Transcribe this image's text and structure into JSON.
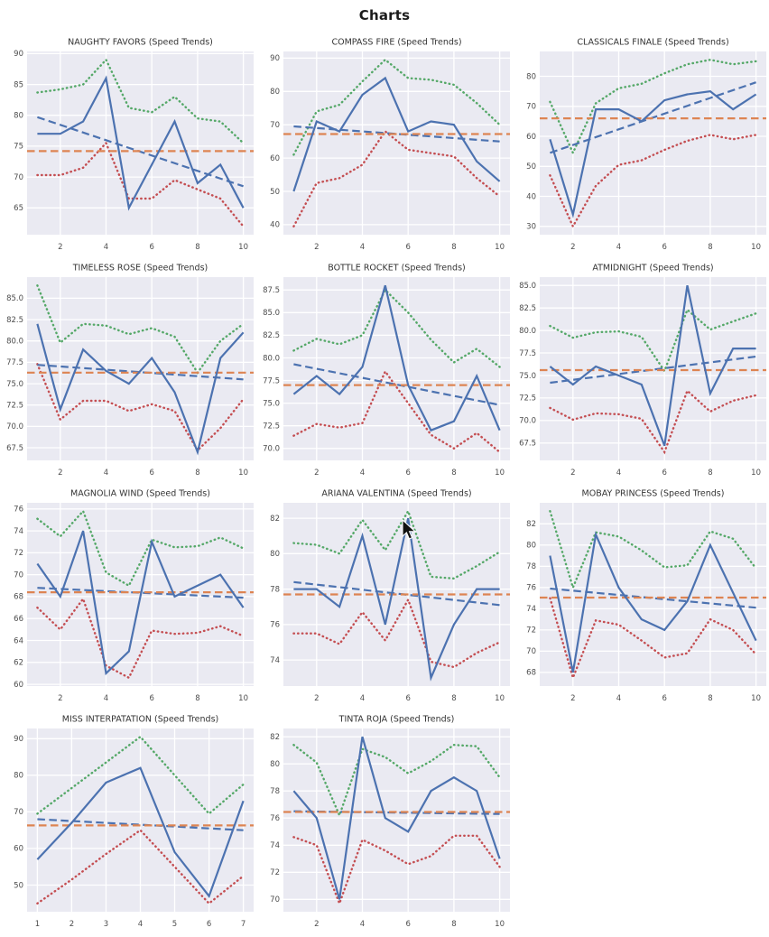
{
  "figure": {
    "title": "Charts"
  },
  "style": {
    "colors": {
      "blue": "#4c72b0",
      "green": "#55a868",
      "red": "#c44e52",
      "orange": "#dd8452",
      "plot_bg": "#eaeaf2",
      "grid": "#ffffff",
      "tick_label": "#4d4d4d",
      "chart_title": "#333333"
    },
    "legend": "none",
    "grid_on": true
  },
  "cursor": {
    "icon": "mouse-pointer"
  },
  "chart_data": [
    {
      "type": "line",
      "title": "NAUGHTY FAVORS (Speed Trends)",
      "x": [
        1,
        2,
        3,
        4,
        5,
        6,
        7,
        8,
        9,
        10
      ],
      "xticks": [
        "2",
        "4",
        "6",
        "8",
        "10"
      ],
      "yticks": [
        "65",
        "70",
        "75",
        "80",
        "85",
        "90"
      ],
      "series": [
        {
          "name": "speed",
          "style": "solid",
          "color": "blue",
          "values": [
            77,
            77,
            79,
            86,
            65,
            72,
            79,
            69,
            72,
            65
          ]
        },
        {
          "name": "upper_band",
          "style": "dotted",
          "color": "green",
          "values": [
            83.7,
            84.2,
            85,
            89,
            81.2,
            80.5,
            83,
            79.5,
            79,
            75.5
          ]
        },
        {
          "name": "lower_band",
          "style": "dotted",
          "color": "red",
          "values": [
            70.3,
            70.3,
            71.5,
            75.5,
            66.5,
            66.5,
            69.5,
            68,
            66.5,
            62
          ]
        },
        {
          "name": "trend",
          "style": "dashed",
          "color": "blue",
          "trend_from": 79.7,
          "trend_to": 68.5
        },
        {
          "name": "mean_line",
          "style": "dashed",
          "color": "orange",
          "constant": 74.2
        }
      ]
    },
    {
      "type": "line",
      "title": "COMPASS FIRE (Speed Trends)",
      "x": [
        1,
        2,
        3,
        4,
        5,
        6,
        7,
        8,
        9,
        10
      ],
      "xticks": [
        "2",
        "4",
        "6",
        "8",
        "10"
      ],
      "yticks": [
        "40",
        "50",
        "60",
        "70",
        "80",
        "90"
      ],
      "series": [
        {
          "name": "speed",
          "style": "solid",
          "color": "blue",
          "values": [
            50,
            71,
            68,
            79,
            84,
            68,
            71,
            70,
            59,
            53
          ]
        },
        {
          "name": "upper_band",
          "style": "dotted",
          "color": "green",
          "values": [
            61,
            74,
            76,
            83,
            89.5,
            84,
            83.5,
            82,
            76.5,
            70
          ]
        },
        {
          "name": "lower_band",
          "style": "dotted",
          "color": "red",
          "values": [
            39.5,
            52.5,
            54,
            58,
            68,
            62.5,
            61.5,
            60.5,
            54,
            48.5
          ]
        },
        {
          "name": "trend",
          "style": "dashed",
          "color": "blue",
          "trend_from": 69.5,
          "trend_to": 65
        },
        {
          "name": "mean_line",
          "style": "dashed",
          "color": "orange",
          "constant": 67.2
        }
      ]
    },
    {
      "type": "line",
      "title": "CLASSICALS FINALE (Speed Trends)",
      "x": [
        1,
        2,
        3,
        4,
        5,
        6,
        7,
        8,
        9,
        10
      ],
      "xticks": [
        "2",
        "4",
        "6",
        "8",
        "10"
      ],
      "yticks": [
        "30",
        "40",
        "50",
        "60",
        "70",
        "80"
      ],
      "series": [
        {
          "name": "speed",
          "style": "solid",
          "color": "blue",
          "values": [
            59,
            34,
            69,
            69,
            65,
            72,
            74,
            75,
            69,
            74
          ]
        },
        {
          "name": "upper_band",
          "style": "dotted",
          "color": "green",
          "values": [
            71.5,
            54.5,
            71,
            76,
            77.5,
            81,
            84,
            85.5,
            84,
            85
          ]
        },
        {
          "name": "lower_band",
          "style": "dotted",
          "color": "red",
          "values": [
            47,
            30,
            43.5,
            50.5,
            52,
            55.5,
            58.5,
            60.5,
            59,
            60.5
          ]
        },
        {
          "name": "trend",
          "style": "dashed",
          "color": "blue",
          "trend_from": 54.5,
          "trend_to": 78
        },
        {
          "name": "mean_line",
          "style": "dashed",
          "color": "orange",
          "constant": 66
        }
      ]
    },
    {
      "type": "line",
      "title": "TIMELESS ROSE (Speed Trends)",
      "x": [
        1,
        2,
        3,
        4,
        5,
        6,
        7,
        8,
        9,
        10
      ],
      "xticks": [
        "2",
        "4",
        "6",
        "8",
        "10"
      ],
      "yticks": [
        "67.5",
        "70.0",
        "72.5",
        "75.0",
        "77.5",
        "80.0",
        "82.5",
        "85.0"
      ],
      "series": [
        {
          "name": "speed",
          "style": "solid",
          "color": "blue",
          "values": [
            82,
            72,
            79,
            76.5,
            75,
            78,
            74,
            67,
            78,
            81
          ]
        },
        {
          "name": "upper_band",
          "style": "dotted",
          "color": "green",
          "values": [
            86.5,
            79.8,
            82,
            81.8,
            80.8,
            81.5,
            80.5,
            76.3,
            80,
            82
          ]
        },
        {
          "name": "lower_band",
          "style": "dotted",
          "color": "red",
          "values": [
            77.3,
            70.8,
            73,
            73,
            71.8,
            72.6,
            71.8,
            67.2,
            69.8,
            73.2
          ]
        },
        {
          "name": "trend",
          "style": "dashed",
          "color": "blue",
          "trend_from": 77.2,
          "trend_to": 75.5
        },
        {
          "name": "mean_line",
          "style": "dashed",
          "color": "orange",
          "constant": 76.3
        }
      ]
    },
    {
      "type": "line",
      "title": "BOTTLE ROCKET (Speed Trends)",
      "x": [
        1,
        2,
        3,
        4,
        5,
        6,
        7,
        8,
        9,
        10
      ],
      "xticks": [
        "2",
        "4",
        "6",
        "8",
        "10"
      ],
      "yticks": [
        "70.0",
        "72.5",
        "75.0",
        "77.5",
        "80.0",
        "82.5",
        "85.0",
        "87.5"
      ],
      "series": [
        {
          "name": "speed",
          "style": "solid",
          "color": "blue",
          "values": [
            76,
            78,
            76,
            79,
            88,
            77,
            72,
            73,
            78,
            72
          ]
        },
        {
          "name": "upper_band",
          "style": "dotted",
          "color": "green",
          "values": [
            80.8,
            82.1,
            81.5,
            82.5,
            87.5,
            85,
            82,
            79.5,
            81,
            79
          ]
        },
        {
          "name": "lower_band",
          "style": "dotted",
          "color": "red",
          "values": [
            71.4,
            72.7,
            72.3,
            72.8,
            78.5,
            75,
            71.5,
            70,
            71.7,
            69.6
          ]
        },
        {
          "name": "trend",
          "style": "dashed",
          "color": "blue",
          "trend_from": 79.3,
          "trend_to": 74.8
        },
        {
          "name": "mean_line",
          "style": "dashed",
          "color": "orange",
          "constant": 77
        }
      ]
    },
    {
      "type": "line",
      "title": "ATMIDNIGHT (Speed Trends)",
      "x": [
        1,
        2,
        3,
        4,
        5,
        6,
        7,
        8,
        9,
        10
      ],
      "xticks": [
        "2",
        "4",
        "6",
        "8",
        "10"
      ],
      "yticks": [
        "67.5",
        "70.0",
        "72.5",
        "75.0",
        "77.5",
        "80.0",
        "82.5",
        "85.0"
      ],
      "series": [
        {
          "name": "speed",
          "style": "solid",
          "color": "blue",
          "values": [
            76,
            74,
            76,
            75,
            74,
            67.2,
            85,
            73,
            78,
            78
          ]
        },
        {
          "name": "upper_band",
          "style": "dotted",
          "color": "green",
          "values": [
            80.5,
            79.2,
            79.8,
            79.9,
            79.3,
            75.5,
            82.3,
            80.1,
            81,
            81.9
          ]
        },
        {
          "name": "lower_band",
          "style": "dotted",
          "color": "red",
          "values": [
            71.4,
            70.1,
            70.8,
            70.7,
            70.2,
            66.5,
            73.3,
            71,
            72.2,
            72.8
          ]
        },
        {
          "name": "trend",
          "style": "dashed",
          "color": "blue",
          "trend_from": 74.2,
          "trend_to": 77.1
        },
        {
          "name": "mean_line",
          "style": "dashed",
          "color": "orange",
          "constant": 75.6
        }
      ]
    },
    {
      "type": "line",
      "title": "MAGNOLIA WIND (Speed Trends)",
      "x": [
        1,
        2,
        3,
        4,
        5,
        6,
        7,
        8,
        9,
        10
      ],
      "xticks": [
        "2",
        "4",
        "6",
        "8",
        "10"
      ],
      "yticks": [
        "60",
        "62",
        "64",
        "66",
        "68",
        "70",
        "72",
        "74",
        "76"
      ],
      "series": [
        {
          "name": "speed",
          "style": "solid",
          "color": "blue",
          "values": [
            71,
            68,
            74,
            61,
            63,
            73,
            68,
            69,
            70,
            67
          ]
        },
        {
          "name": "upper_band",
          "style": "dotted",
          "color": "green",
          "values": [
            75.1,
            73.5,
            75.8,
            70.2,
            69,
            73.2,
            72.5,
            72.6,
            73.4,
            72.4
          ]
        },
        {
          "name": "lower_band",
          "style": "dotted",
          "color": "red",
          "values": [
            67,
            65,
            67.8,
            61.7,
            60.6,
            64.9,
            64.6,
            64.7,
            65.3,
            64.4
          ]
        },
        {
          "name": "trend",
          "style": "dashed",
          "color": "blue",
          "trend_from": 68.8,
          "trend_to": 67.9
        },
        {
          "name": "mean_line",
          "style": "dashed",
          "color": "orange",
          "constant": 68.4
        }
      ]
    },
    {
      "type": "line",
      "title": "ARIANA VALENTINA (Speed Trends)",
      "x": [
        1,
        2,
        3,
        4,
        5,
        6,
        7,
        8,
        9,
        10
      ],
      "xticks": [
        "2",
        "4",
        "6",
        "8",
        "10"
      ],
      "yticks": [
        "74",
        "76",
        "78",
        "80",
        "82"
      ],
      "series": [
        {
          "name": "speed",
          "style": "solid",
          "color": "blue",
          "values": [
            78,
            78,
            77,
            81,
            76,
            82,
            73,
            76,
            78,
            78
          ]
        },
        {
          "name": "upper_band",
          "style": "dotted",
          "color": "green",
          "values": [
            80.6,
            80.5,
            80,
            81.9,
            80.2,
            82.4,
            78.7,
            78.6,
            79.3,
            80.1
          ]
        },
        {
          "name": "lower_band",
          "style": "dotted",
          "color": "red",
          "values": [
            75.5,
            75.5,
            74.9,
            76.7,
            75.1,
            77.4,
            73.9,
            73.6,
            74.4,
            75
          ]
        },
        {
          "name": "trend",
          "style": "dashed",
          "color": "blue",
          "trend_from": 78.4,
          "trend_to": 77.1
        },
        {
          "name": "mean_line",
          "style": "dashed",
          "color": "orange",
          "constant": 77.7
        }
      ]
    },
    {
      "type": "line",
      "title": "MOBAY PRINCESS (Speed Trends)",
      "x": [
        1,
        2,
        3,
        4,
        5,
        6,
        7,
        8,
        9,
        10
      ],
      "xticks": [
        "2",
        "4",
        "6",
        "8",
        "10"
      ],
      "yticks": [
        "68",
        "70",
        "72",
        "74",
        "76",
        "78",
        "80",
        "82"
      ],
      "series": [
        {
          "name": "speed",
          "style": "solid",
          "color": "blue",
          "values": [
            79,
            68,
            81,
            76,
            73,
            72,
            74.7,
            80,
            75.5,
            71
          ]
        },
        {
          "name": "upper_band",
          "style": "dotted",
          "color": "green",
          "values": [
            83.2,
            76,
            81.2,
            80.8,
            79.5,
            77.9,
            78.1,
            81.3,
            80.6,
            77.8
          ]
        },
        {
          "name": "lower_band",
          "style": "dotted",
          "color": "red",
          "values": [
            75,
            67.5,
            72.9,
            72.5,
            71,
            69.4,
            69.8,
            73,
            72,
            69.7
          ]
        },
        {
          "name": "trend",
          "style": "dashed",
          "color": "blue",
          "trend_from": 75.9,
          "trend_to": 74.1
        },
        {
          "name": "mean_line",
          "style": "dashed",
          "color": "orange",
          "constant": 75.05
        }
      ]
    },
    {
      "type": "line",
      "title": "MISS INTERPATATION (Speed Trends)",
      "x": [
        1,
        2,
        3,
        4,
        5,
        6,
        7
      ],
      "xticks": [
        "1",
        "2",
        "3",
        "4",
        "5",
        "6",
        "7"
      ],
      "yticks": [
        "50",
        "60",
        "70",
        "80",
        "90"
      ],
      "series": [
        {
          "name": "speed",
          "style": "solid",
          "color": "blue",
          "values": [
            57,
            67,
            78,
            82,
            59,
            47,
            73
          ]
        },
        {
          "name": "upper_band",
          "style": "dotted",
          "color": "green",
          "values": [
            69.5,
            76.5,
            83.5,
            90.5,
            80,
            69.5,
            77.5
          ]
        },
        {
          "name": "lower_band",
          "style": "dotted",
          "color": "red",
          "values": [
            45,
            51.5,
            58.5,
            65,
            55,
            45,
            52.5
          ]
        },
        {
          "name": "trend",
          "style": "dashed",
          "color": "blue",
          "trend_from": 68,
          "trend_to": 65
        },
        {
          "name": "mean_line",
          "style": "dashed",
          "color": "orange",
          "constant": 66.3
        }
      ]
    },
    {
      "type": "line",
      "title": "TINTA ROJA (Speed Trends)",
      "x": [
        1,
        2,
        3,
        4,
        5,
        6,
        7,
        8,
        9,
        10
      ],
      "xticks": [
        "2",
        "4",
        "6",
        "8",
        "10"
      ],
      "yticks": [
        "70",
        "72",
        "74",
        "76",
        "78",
        "80",
        "82"
      ],
      "series": [
        {
          "name": "speed",
          "style": "solid",
          "color": "blue",
          "values": [
            78,
            76,
            70,
            82,
            76,
            75,
            78,
            79,
            78,
            73
          ]
        },
        {
          "name": "upper_band",
          "style": "dotted",
          "color": "green",
          "values": [
            81.4,
            80.1,
            76.2,
            81.1,
            80.5,
            79.3,
            80.2,
            81.4,
            81.3,
            79
          ]
        },
        {
          "name": "lower_band",
          "style": "dotted",
          "color": "red",
          "values": [
            74.6,
            74,
            69.7,
            74.4,
            73.6,
            72.6,
            73.2,
            74.7,
            74.7,
            72.4
          ]
        },
        {
          "name": "trend",
          "style": "dashed",
          "color": "blue",
          "trend_from": 76.5,
          "trend_to": 76.3
        },
        {
          "name": "mean_line",
          "style": "dashed",
          "color": "orange",
          "constant": 76.45
        }
      ]
    }
  ]
}
